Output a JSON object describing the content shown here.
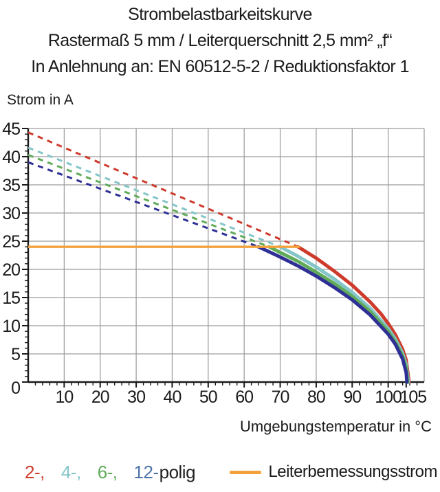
{
  "page": {
    "background": "#ffffff",
    "text_color": "#1b1b1b"
  },
  "title": {
    "line1": "Strombelastbarkeitskurve",
    "line2": "Rastermaß 5 mm / Leiterquerschnitt 2,5 mm² „f“",
    "line3": "In Anlehnung an: EN 60512-5-2 / Reduktionsfaktor 1"
  },
  "chart_data": {
    "type": "line",
    "title": "Strombelastbarkeitskurve",
    "xlabel": "Umgebungstemperatur in °C",
    "ylabel": "Strom in A",
    "xlim": [
      0,
      110
    ],
    "ylim": [
      0,
      45
    ],
    "x_ticks": [
      10,
      20,
      30,
      40,
      50,
      60,
      70,
      80,
      90,
      100,
      105
    ],
    "y_ticks": [
      0,
      5,
      10,
      15,
      20,
      25,
      30,
      35,
      40,
      45
    ],
    "x_minor_step": 2,
    "y_minor_step": 1,
    "grid": true,
    "grid_color": "#9c9c9c",
    "axis_color": "#1a1a1a",
    "reference_line": {
      "label": "Leiterbemessungsstrom",
      "value": 24,
      "x_start": 0,
      "x_end": 75.5,
      "color": "#f3a13b"
    },
    "series": [
      {
        "name": "2-polig",
        "color": "#ce3b2c",
        "dashed_points": [
          [
            0,
            44.3
          ],
          [
            75,
            24
          ]
        ],
        "solid_points": [
          [
            75,
            24
          ],
          [
            80,
            22.0
          ],
          [
            85,
            19.7
          ],
          [
            90,
            17.2
          ],
          [
            95,
            14.2
          ],
          [
            98,
            12.1
          ],
          [
            100,
            10.4
          ],
          [
            102,
            8.4
          ],
          [
            104,
            5.8
          ],
          [
            105,
            3.9
          ],
          [
            105.8,
            0
          ]
        ]
      },
      {
        "name": "4-polig",
        "color": "#83c5c8",
        "dashed_points": [
          [
            0,
            41.6
          ],
          [
            70,
            24
          ]
        ],
        "solid_points": [
          [
            70,
            24
          ],
          [
            75,
            22.3
          ],
          [
            80,
            20.4
          ],
          [
            85,
            18.3
          ],
          [
            90,
            15.9
          ],
          [
            95,
            13.1
          ],
          [
            100,
            9.5
          ],
          [
            102,
            7.6
          ],
          [
            104,
            5.1
          ],
          [
            105,
            3.1
          ],
          [
            105.6,
            0
          ]
        ]
      },
      {
        "name": "6-polig",
        "color": "#5fab58",
        "dashed_points": [
          [
            0,
            40.3
          ],
          [
            67,
            24
          ]
        ],
        "solid_points": [
          [
            67,
            24
          ],
          [
            70,
            23.0
          ],
          [
            75,
            21.4
          ],
          [
            80,
            19.5
          ],
          [
            85,
            17.5
          ],
          [
            90,
            15.2
          ],
          [
            95,
            12.5
          ],
          [
            100,
            9.0
          ],
          [
            102,
            7.1
          ],
          [
            104,
            4.6
          ],
          [
            105,
            2.5
          ],
          [
            105.4,
            0
          ]
        ]
      },
      {
        "name": "12-polig",
        "color": "#2f3095",
        "dashed_points": [
          [
            0,
            39.0
          ],
          [
            64,
            24
          ]
        ],
        "solid_points": [
          [
            64,
            24
          ],
          [
            70,
            22.2
          ],
          [
            75,
            20.6
          ],
          [
            80,
            18.8
          ],
          [
            85,
            16.8
          ],
          [
            90,
            14.6
          ],
          [
            95,
            11.9
          ],
          [
            100,
            8.5
          ],
          [
            102,
            6.7
          ],
          [
            104,
            4.1
          ],
          [
            105,
            1.7
          ],
          [
            105.2,
            0
          ]
        ]
      }
    ]
  },
  "legend": {
    "poles": [
      {
        "label": "2-,",
        "color": "#ce3b2c"
      },
      {
        "label": "4-,",
        "color": "#83c5c8"
      },
      {
        "label": "6-,",
        "color": "#5fab58"
      },
      {
        "label": "12-",
        "color": "#4b74a6"
      }
    ],
    "poles_suffix": "polig",
    "reference": {
      "label": "Leiterbemessungsstrom",
      "color": "#f3a13b"
    }
  }
}
